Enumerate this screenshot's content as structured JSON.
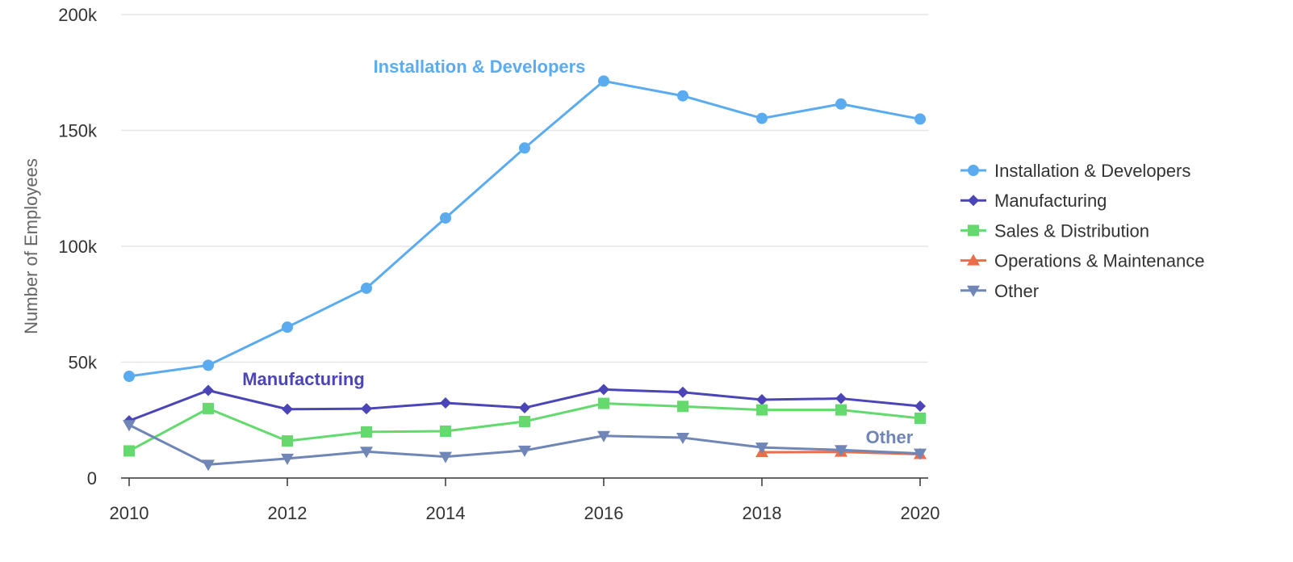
{
  "chart_data": {
    "type": "line",
    "xlabel": "",
    "ylabel": "Number of Employees",
    "ylim": [
      0,
      200000
    ],
    "xlim": [
      2010,
      2020
    ],
    "y_ticks": [
      {
        "value": 0,
        "label": "0"
      },
      {
        "value": 50000,
        "label": "50k"
      },
      {
        "value": 100000,
        "label": "100k"
      },
      {
        "value": 150000,
        "label": "150k"
      },
      {
        "value": 200000,
        "label": "200k"
      }
    ],
    "x_ticks": [
      {
        "value": 2010,
        "label": "2010"
      },
      {
        "value": 2012,
        "label": "2012"
      },
      {
        "value": 2014,
        "label": "2014"
      },
      {
        "value": 2016,
        "label": "2016"
      },
      {
        "value": 2018,
        "label": "2018"
      },
      {
        "value": 2020,
        "label": "2020"
      }
    ],
    "grid": true,
    "legend_position": "right",
    "series": [
      {
        "name": "Installation & Developers",
        "color": "#5aabf0",
        "marker": "circle",
        "inline_label": "Installation & Developers",
        "points": [
          [
            2010,
            43900
          ],
          [
            2011,
            48650
          ],
          [
            2012,
            65100
          ],
          [
            2013,
            81900
          ],
          [
            2014,
            112200
          ],
          [
            2015,
            142400
          ],
          [
            2016,
            171300
          ],
          [
            2017,
            164900
          ],
          [
            2018,
            155200
          ],
          [
            2019,
            161400
          ],
          [
            2020,
            154900
          ]
        ]
      },
      {
        "name": "Manufacturing",
        "color": "#4b45b8",
        "marker": "diamond",
        "inline_label": "Manufacturing",
        "points": [
          [
            2010,
            24700
          ],
          [
            2011,
            37800
          ],
          [
            2012,
            29700
          ],
          [
            2013,
            29900
          ],
          [
            2014,
            32400
          ],
          [
            2015,
            30300
          ],
          [
            2016,
            38200
          ],
          [
            2017,
            37000
          ],
          [
            2018,
            33800
          ],
          [
            2019,
            34300
          ],
          [
            2020,
            31000
          ]
        ]
      },
      {
        "name": "Sales & Distribution",
        "color": "#63d96e",
        "marker": "square",
        "inline_label": "",
        "points": [
          [
            2010,
            11700
          ],
          [
            2011,
            30000
          ],
          [
            2012,
            16000
          ],
          [
            2013,
            19900
          ],
          [
            2014,
            20200
          ],
          [
            2015,
            24400
          ],
          [
            2016,
            32200
          ],
          [
            2017,
            30900
          ],
          [
            2018,
            29400
          ],
          [
            2019,
            29400
          ],
          [
            2020,
            25800
          ]
        ]
      },
      {
        "name": "Operations & Maintenance",
        "color": "#ef6c49",
        "marker": "triangle-up",
        "inline_label": "",
        "points": [
          [
            2018,
            11100
          ],
          [
            2019,
            11300
          ],
          [
            2020,
            10300
          ]
        ]
      },
      {
        "name": "Other",
        "color": "#6f86b6",
        "marker": "triangle-down",
        "inline_label": "Other",
        "points": [
          [
            2010,
            22900
          ],
          [
            2011,
            5800
          ],
          [
            2012,
            8400
          ],
          [
            2013,
            11400
          ],
          [
            2014,
            9200
          ],
          [
            2015,
            11900
          ],
          [
            2016,
            18200
          ],
          [
            2017,
            17400
          ],
          [
            2018,
            13200
          ],
          [
            2019,
            12100
          ],
          [
            2020,
            10600
          ]
        ]
      }
    ]
  }
}
